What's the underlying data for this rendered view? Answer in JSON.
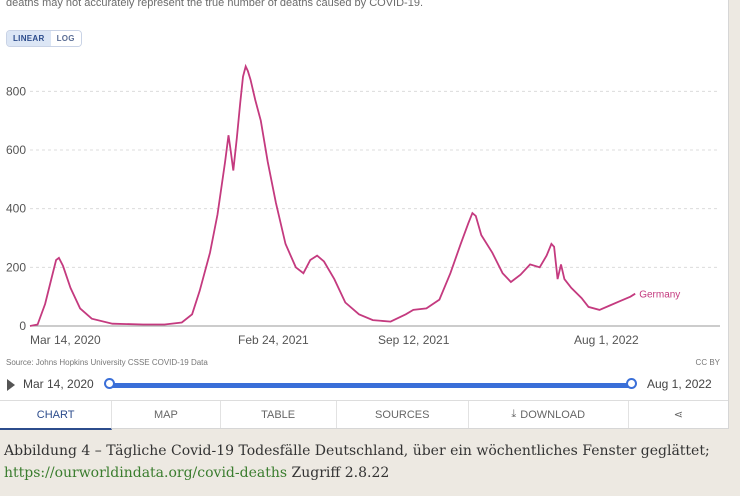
{
  "header": {
    "note": "deaths may not accurately represent the true number of deaths caused by COVID-19."
  },
  "scale_toggle": {
    "linear_label": "LINEAR",
    "log_label": "LOG",
    "selected": "LINEAR"
  },
  "chart_data": {
    "type": "line",
    "title": "",
    "xlabel": "",
    "ylabel": "",
    "x_tick_labels": [
      "Mar 14, 2020",
      "Feb 24, 2021",
      "Sep 12, 2021",
      "Aug 1, 2022"
    ],
    "y_ticks": [
      0,
      200,
      400,
      600,
      800
    ],
    "ylim": [
      0,
      900
    ],
    "xlim": [
      "2020-03-03",
      "2022-08-08"
    ],
    "grid": "horizontal dashed",
    "legend": "inline label at end of line",
    "series": [
      {
        "name": "Germany",
        "color": "#c43a7f",
        "points": [
          [
            "2020-03-03",
            0
          ],
          [
            "2020-03-14",
            5
          ],
          [
            "2020-03-25",
            75
          ],
          [
            "2020-04-03",
            160
          ],
          [
            "2020-04-10",
            225
          ],
          [
            "2020-04-14",
            232
          ],
          [
            "2020-04-20",
            205
          ],
          [
            "2020-05-01",
            130
          ],
          [
            "2020-05-15",
            60
          ],
          [
            "2020-06-01",
            25
          ],
          [
            "2020-07-01",
            8
          ],
          [
            "2020-08-15",
            5
          ],
          [
            "2020-09-15",
            5
          ],
          [
            "2020-10-10",
            12
          ],
          [
            "2020-10-25",
            40
          ],
          [
            "2020-11-05",
            120
          ],
          [
            "2020-11-20",
            250
          ],
          [
            "2020-12-01",
            380
          ],
          [
            "2020-12-12",
            560
          ],
          [
            "2020-12-17",
            650
          ],
          [
            "2020-12-20",
            600
          ],
          [
            "2020-12-24",
            530
          ],
          [
            "2020-12-29",
            640
          ],
          [
            "2021-01-03",
            760
          ],
          [
            "2021-01-07",
            850
          ],
          [
            "2021-01-11",
            885
          ],
          [
            "2021-01-14",
            870
          ],
          [
            "2021-01-18",
            840
          ],
          [
            "2021-01-25",
            770
          ],
          [
            "2021-02-02",
            700
          ],
          [
            "2021-02-12",
            560
          ],
          [
            "2021-02-24",
            420
          ],
          [
            "2021-03-10",
            280
          ],
          [
            "2021-03-25",
            200
          ],
          [
            "2021-04-05",
            180
          ],
          [
            "2021-04-15",
            225
          ],
          [
            "2021-04-25",
            240
          ],
          [
            "2021-05-05",
            220
          ],
          [
            "2021-05-20",
            160
          ],
          [
            "2021-06-05",
            80
          ],
          [
            "2021-06-25",
            40
          ],
          [
            "2021-07-15",
            20
          ],
          [
            "2021-08-10",
            15
          ],
          [
            "2021-09-01",
            40
          ],
          [
            "2021-09-12",
            55
          ],
          [
            "2021-10-01",
            60
          ],
          [
            "2021-10-20",
            90
          ],
          [
            "2021-11-05",
            180
          ],
          [
            "2021-11-20",
            280
          ],
          [
            "2021-12-01",
            350
          ],
          [
            "2021-12-07",
            385
          ],
          [
            "2021-12-12",
            375
          ],
          [
            "2021-12-20",
            310
          ],
          [
            "2022-01-05",
            250
          ],
          [
            "2022-01-20",
            180
          ],
          [
            "2022-02-01",
            150
          ],
          [
            "2022-02-15",
            175
          ],
          [
            "2022-03-01",
            210
          ],
          [
            "2022-03-15",
            200
          ],
          [
            "2022-03-25",
            240
          ],
          [
            "2022-04-01",
            280
          ],
          [
            "2022-04-05",
            270
          ],
          [
            "2022-04-10",
            160
          ],
          [
            "2022-04-15",
            210
          ],
          [
            "2022-04-20",
            160
          ],
          [
            "2022-04-30",
            130
          ],
          [
            "2022-05-15",
            95
          ],
          [
            "2022-05-25",
            65
          ],
          [
            "2022-06-10",
            55
          ],
          [
            "2022-06-25",
            70
          ],
          [
            "2022-07-10",
            85
          ],
          [
            "2022-07-25",
            100
          ],
          [
            "2022-08-01",
            110
          ]
        ]
      }
    ]
  },
  "source": {
    "text": "Source: Johns Hopkins University CSSE COVID-19 Data",
    "license": "CC BY"
  },
  "timeline": {
    "start_label": "Mar 14, 2020",
    "end_label": "Aug 1, 2022"
  },
  "tabs": [
    {
      "label": "CHART"
    },
    {
      "label": "MAP"
    },
    {
      "label": "TABLE"
    },
    {
      "label": "SOURCES"
    },
    {
      "label": "DOWNLOAD"
    },
    {
      "label": ""
    }
  ],
  "caption": {
    "line1": "Abbildung 4 – Tägliche Covid-19 Todesfälle Deutschland, über ein wöchentliches Fenster geglättet;",
    "link": "https://ourworldindata.org/covid-deaths",
    "suffix": " Zugriff 2.8.22"
  },
  "colors": {
    "accent": "#3a6fd8",
    "series": "#c43a7f",
    "link": "#3a7d2e"
  }
}
